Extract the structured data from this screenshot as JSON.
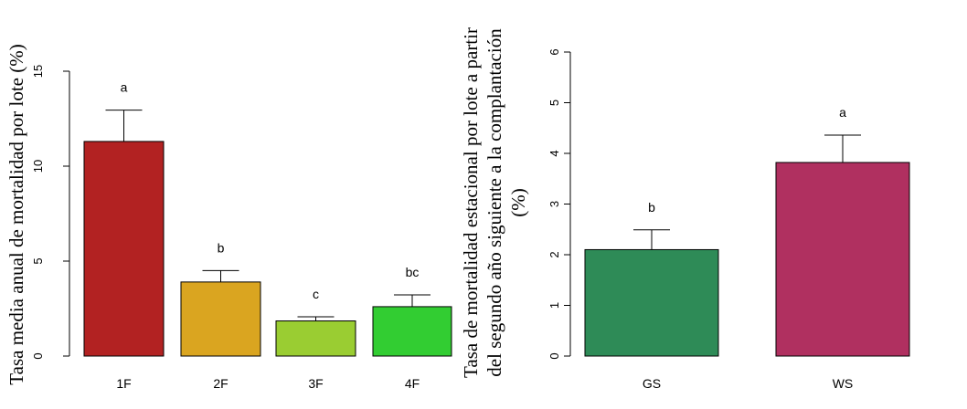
{
  "chart_data": [
    {
      "type": "bar",
      "ylabel": "Tasa media anual de mortalidad por lote (%)",
      "categories": [
        "1F",
        "2F",
        "3F",
        "4F"
      ],
      "values": [
        11.3,
        3.9,
        1.85,
        2.6
      ],
      "error_upper": [
        12.95,
        4.5,
        2.07,
        3.22
      ],
      "letters": [
        "a",
        "b",
        "c",
        "bc"
      ],
      "colors": [
        "#B22222",
        "#DAA520",
        "#9ACD32",
        "#32CD32"
      ],
      "ylim": [
        0,
        15
      ],
      "yticks": [
        0,
        5,
        10,
        15
      ],
      "grid": false
    },
    {
      "type": "bar",
      "ylabel_lines": [
        "Tasa de mortalidad estacional por lote a partir",
        "del segundo año siguiente a la complantación",
        "(%)"
      ],
      "categories": [
        "GS",
        "WS"
      ],
      "values": [
        2.1,
        3.82
      ],
      "error_upper": [
        2.49,
        4.36
      ],
      "letters": [
        "b",
        "a"
      ],
      "colors": [
        "#2E8B57",
        "#B03060"
      ],
      "ylim": [
        0,
        6
      ],
      "yticks": [
        0,
        1,
        2,
        3,
        4,
        5,
        6
      ],
      "grid": false
    }
  ]
}
